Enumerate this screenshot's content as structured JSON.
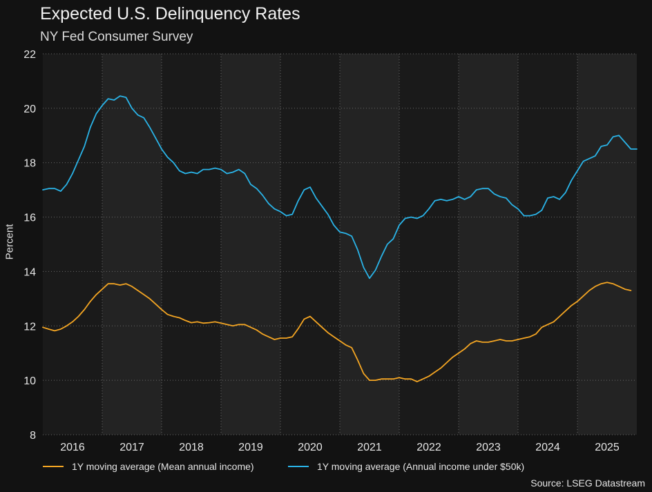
{
  "header": {
    "title": "Expected U.S. Delinquency Rates",
    "subtitle": "NY Fed Consumer Survey"
  },
  "footer": {
    "source": "Source: LSEG Datastream"
  },
  "colors": {
    "background": "#121212",
    "plot_band_light": "#232323",
    "plot_band_dark": "#1a1a1a",
    "grid": "#6a6a6a",
    "series_mean_income": "#f5a623",
    "series_under_50k": "#2ab4e8"
  },
  "chart_data": {
    "type": "line",
    "title": "Expected U.S. Delinquency Rates",
    "subtitle": "NY Fed Consumer Survey",
    "ylabel": "Percent",
    "xlabel": "",
    "ylim": [
      8,
      22
    ],
    "yticks": [
      8,
      10,
      12,
      14,
      16,
      18,
      20,
      22
    ],
    "xlim": [
      2015.5,
      2025.5
    ],
    "xticks": [
      {
        "label": "2016",
        "value": 2016.0
      },
      {
        "label": "2017",
        "value": 2017.0
      },
      {
        "label": "2018",
        "value": 2018.0
      },
      {
        "label": "2019",
        "value": 2019.0
      },
      {
        "label": "2020",
        "value": 2020.0
      },
      {
        "label": "2021",
        "value": 2021.0
      },
      {
        "label": "2022",
        "value": 2022.0
      },
      {
        "label": "2023",
        "value": 2023.0
      },
      {
        "label": "2024",
        "value": 2024.0
      },
      {
        "label": "2025",
        "value": 2025.0
      }
    ],
    "grid": true,
    "legend_position": "bottom-left",
    "series": [
      {
        "name": "1Y moving average (Mean annual income)",
        "color": "#f5a623",
        "points": [
          [
            2015.5,
            11.95
          ],
          [
            2015.6,
            11.88
          ],
          [
            2015.7,
            11.82
          ],
          [
            2015.8,
            11.88
          ],
          [
            2015.9,
            12.0
          ],
          [
            2016.0,
            12.15
          ],
          [
            2016.1,
            12.35
          ],
          [
            2016.2,
            12.6
          ],
          [
            2016.3,
            12.9
          ],
          [
            2016.4,
            13.15
          ],
          [
            2016.5,
            13.35
          ],
          [
            2016.6,
            13.55
          ],
          [
            2016.7,
            13.55
          ],
          [
            2016.8,
            13.5
          ],
          [
            2016.9,
            13.55
          ],
          [
            2017.0,
            13.45
          ],
          [
            2017.1,
            13.3
          ],
          [
            2017.2,
            13.15
          ],
          [
            2017.3,
            13.0
          ],
          [
            2017.4,
            12.8
          ],
          [
            2017.5,
            12.6
          ],
          [
            2017.6,
            12.42
          ],
          [
            2017.7,
            12.35
          ],
          [
            2017.8,
            12.3
          ],
          [
            2017.9,
            12.2
          ],
          [
            2018.0,
            12.12
          ],
          [
            2018.1,
            12.15
          ],
          [
            2018.2,
            12.1
          ],
          [
            2018.3,
            12.12
          ],
          [
            2018.4,
            12.15
          ],
          [
            2018.5,
            12.1
          ],
          [
            2018.6,
            12.05
          ],
          [
            2018.7,
            12.0
          ],
          [
            2018.8,
            12.05
          ],
          [
            2018.9,
            12.05
          ],
          [
            2019.0,
            11.95
          ],
          [
            2019.1,
            11.85
          ],
          [
            2019.2,
            11.7
          ],
          [
            2019.3,
            11.6
          ],
          [
            2019.4,
            11.5
          ],
          [
            2019.5,
            11.55
          ],
          [
            2019.6,
            11.55
          ],
          [
            2019.7,
            11.6
          ],
          [
            2019.8,
            11.9
          ],
          [
            2019.9,
            12.25
          ],
          [
            2020.0,
            12.35
          ],
          [
            2020.1,
            12.15
          ],
          [
            2020.2,
            11.95
          ],
          [
            2020.3,
            11.75
          ],
          [
            2020.4,
            11.6
          ],
          [
            2020.5,
            11.45
          ],
          [
            2020.6,
            11.3
          ],
          [
            2020.7,
            11.2
          ],
          [
            2020.8,
            10.75
          ],
          [
            2020.9,
            10.25
          ],
          [
            2021.0,
            10.0
          ],
          [
            2021.1,
            10.0
          ],
          [
            2021.2,
            10.05
          ],
          [
            2021.3,
            10.05
          ],
          [
            2021.4,
            10.05
          ],
          [
            2021.5,
            10.1
          ],
          [
            2021.6,
            10.05
          ],
          [
            2021.7,
            10.05
          ],
          [
            2021.8,
            9.95
          ],
          [
            2021.9,
            10.05
          ],
          [
            2022.0,
            10.15
          ],
          [
            2022.1,
            10.3
          ],
          [
            2022.2,
            10.45
          ],
          [
            2022.3,
            10.65
          ],
          [
            2022.4,
            10.85
          ],
          [
            2022.5,
            11.0
          ],
          [
            2022.6,
            11.15
          ],
          [
            2022.7,
            11.35
          ],
          [
            2022.8,
            11.45
          ],
          [
            2022.9,
            11.4
          ],
          [
            2023.0,
            11.4
          ],
          [
            2023.1,
            11.45
          ],
          [
            2023.2,
            11.5
          ],
          [
            2023.3,
            11.45
          ],
          [
            2023.4,
            11.45
          ],
          [
            2023.5,
            11.5
          ],
          [
            2023.6,
            11.55
          ],
          [
            2023.7,
            11.6
          ],
          [
            2023.8,
            11.7
          ],
          [
            2023.9,
            11.95
          ],
          [
            2024.0,
            12.05
          ],
          [
            2024.1,
            12.15
          ],
          [
            2024.2,
            12.35
          ],
          [
            2024.3,
            12.55
          ],
          [
            2024.4,
            12.75
          ],
          [
            2024.5,
            12.9
          ],
          [
            2024.6,
            13.1
          ],
          [
            2024.7,
            13.3
          ],
          [
            2024.8,
            13.45
          ],
          [
            2024.9,
            13.55
          ],
          [
            2025.0,
            13.6
          ],
          [
            2025.1,
            13.55
          ],
          [
            2025.2,
            13.45
          ],
          [
            2025.3,
            13.35
          ],
          [
            2025.4,
            13.3
          ]
        ]
      },
      {
        "name": "1Y moving average (Annual income under $50k)",
        "color": "#2ab4e8",
        "points": [
          [
            2015.5,
            17.0
          ],
          [
            2015.6,
            17.05
          ],
          [
            2015.7,
            17.05
          ],
          [
            2015.8,
            16.95
          ],
          [
            2015.9,
            17.2
          ],
          [
            2016.0,
            17.6
          ],
          [
            2016.1,
            18.1
          ],
          [
            2016.2,
            18.6
          ],
          [
            2016.3,
            19.3
          ],
          [
            2016.4,
            19.8
          ],
          [
            2016.5,
            20.1
          ],
          [
            2016.6,
            20.35
          ],
          [
            2016.7,
            20.3
          ],
          [
            2016.8,
            20.45
          ],
          [
            2016.9,
            20.4
          ],
          [
            2017.0,
            20.0
          ],
          [
            2017.1,
            19.75
          ],
          [
            2017.2,
            19.65
          ],
          [
            2017.3,
            19.3
          ],
          [
            2017.4,
            18.9
          ],
          [
            2017.5,
            18.5
          ],
          [
            2017.6,
            18.2
          ],
          [
            2017.7,
            18.0
          ],
          [
            2017.8,
            17.7
          ],
          [
            2017.9,
            17.6
          ],
          [
            2018.0,
            17.65
          ],
          [
            2018.1,
            17.6
          ],
          [
            2018.2,
            17.75
          ],
          [
            2018.3,
            17.75
          ],
          [
            2018.4,
            17.8
          ],
          [
            2018.5,
            17.75
          ],
          [
            2018.6,
            17.6
          ],
          [
            2018.7,
            17.65
          ],
          [
            2018.8,
            17.75
          ],
          [
            2018.9,
            17.6
          ],
          [
            2019.0,
            17.2
          ],
          [
            2019.1,
            17.05
          ],
          [
            2019.2,
            16.8
          ],
          [
            2019.3,
            16.5
          ],
          [
            2019.4,
            16.3
          ],
          [
            2019.5,
            16.2
          ],
          [
            2019.6,
            16.05
          ],
          [
            2019.7,
            16.1
          ],
          [
            2019.8,
            16.6
          ],
          [
            2019.9,
            17.0
          ],
          [
            2020.0,
            17.1
          ],
          [
            2020.1,
            16.7
          ],
          [
            2020.2,
            16.4
          ],
          [
            2020.3,
            16.1
          ],
          [
            2020.4,
            15.7
          ],
          [
            2020.5,
            15.45
          ],
          [
            2020.6,
            15.4
          ],
          [
            2020.7,
            15.3
          ],
          [
            2020.8,
            14.8
          ],
          [
            2020.9,
            14.15
          ],
          [
            2021.0,
            13.75
          ],
          [
            2021.1,
            14.05
          ],
          [
            2021.2,
            14.55
          ],
          [
            2021.3,
            15.0
          ],
          [
            2021.4,
            15.2
          ],
          [
            2021.5,
            15.7
          ],
          [
            2021.6,
            15.95
          ],
          [
            2021.7,
            16.0
          ],
          [
            2021.8,
            15.95
          ],
          [
            2021.9,
            16.05
          ],
          [
            2022.0,
            16.3
          ],
          [
            2022.1,
            16.6
          ],
          [
            2022.2,
            16.65
          ],
          [
            2022.3,
            16.6
          ],
          [
            2022.4,
            16.65
          ],
          [
            2022.5,
            16.75
          ],
          [
            2022.6,
            16.65
          ],
          [
            2022.7,
            16.75
          ],
          [
            2022.8,
            17.0
          ],
          [
            2022.9,
            17.05
          ],
          [
            2023.0,
            17.05
          ],
          [
            2023.1,
            16.85
          ],
          [
            2023.2,
            16.75
          ],
          [
            2023.3,
            16.7
          ],
          [
            2023.4,
            16.45
          ],
          [
            2023.5,
            16.3
          ],
          [
            2023.6,
            16.05
          ],
          [
            2023.7,
            16.05
          ],
          [
            2023.8,
            16.1
          ],
          [
            2023.9,
            16.25
          ],
          [
            2024.0,
            16.7
          ],
          [
            2024.1,
            16.75
          ],
          [
            2024.2,
            16.65
          ],
          [
            2024.3,
            16.9
          ],
          [
            2024.4,
            17.35
          ],
          [
            2024.5,
            17.7
          ],
          [
            2024.6,
            18.05
          ],
          [
            2024.7,
            18.15
          ],
          [
            2024.8,
            18.25
          ],
          [
            2024.9,
            18.6
          ],
          [
            2025.0,
            18.65
          ],
          [
            2025.1,
            18.95
          ],
          [
            2025.2,
            19.0
          ],
          [
            2025.3,
            18.75
          ],
          [
            2025.4,
            18.5
          ],
          [
            2025.5,
            18.5
          ]
        ]
      }
    ]
  }
}
